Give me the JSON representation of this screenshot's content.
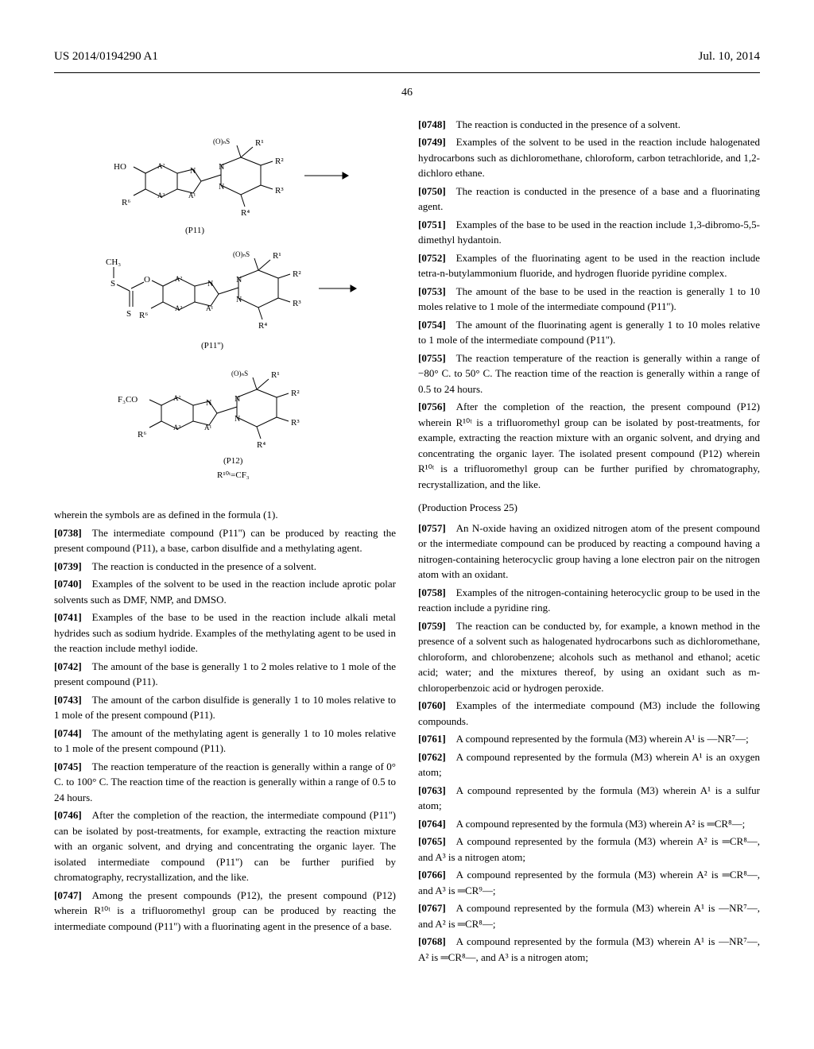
{
  "header": {
    "left": "US 2014/0194290 A1",
    "right": "Jul. 10, 2014"
  },
  "page_number": "46",
  "chemical_diagram": {
    "type": "diagram",
    "description": "Three-step reaction scheme: (P11) hydroxy-substituted fused bicyclic compound → (P11'') xanthate intermediate → (P12) trifluoromethoxy product",
    "labels": [
      "(P11)",
      "(P11'')",
      "(P12)"
    ],
    "substituents": [
      "R¹",
      "R²",
      "R³",
      "R⁴",
      "R⁶",
      "A¹",
      "A²",
      "A³",
      "(O)ₙS",
      "HO",
      "CH₃",
      "S",
      "O",
      "F₃CO"
    ],
    "footer": "R¹⁰ᵗ=CF₃",
    "colors": {
      "stroke": "#000000",
      "background": "#ffffff"
    },
    "line_width": 1
  },
  "left_column": [
    {
      "t": "wherein the symbols are as defined in the formula (1)."
    },
    {
      "pn": "[0738]",
      "t": "The intermediate compound (P11'') can be produced by reacting the present compound (P11), a base, carbon disulfide and a methylating agent."
    },
    {
      "pn": "[0739]",
      "t": "The reaction is conducted in the presence of a solvent."
    },
    {
      "pn": "[0740]",
      "t": "Examples of the solvent to be used in the reaction include aprotic polar solvents such as DMF, NMP, and DMSO."
    },
    {
      "pn": "[0741]",
      "t": "Examples of the base to be used in the reaction include alkali metal hydrides such as sodium hydride. Examples of the methylating agent to be used in the reaction include methyl iodide."
    },
    {
      "pn": "[0742]",
      "t": "The amount of the base is generally 1 to 2 moles relative to 1 mole of the present compound (P11)."
    },
    {
      "pn": "[0743]",
      "t": "The amount of the carbon disulfide is generally 1 to 10 moles relative to 1 mole of the present compound (P11)."
    },
    {
      "pn": "[0744]",
      "t": "The amount of the methylating agent is generally 1 to 10 moles relative to 1 mole of the present compound (P11)."
    },
    {
      "pn": "[0745]",
      "t": "The reaction temperature of the reaction is generally within a range of 0° C. to 100° C. The reaction time of the reaction is generally within a range of 0.5 to 24 hours."
    },
    {
      "pn": "[0746]",
      "t": "After the completion of the reaction, the intermediate compound (P11'') can be isolated by post-treatments, for example, extracting the reaction mixture with an organic solvent, and drying and concentrating the organic layer. The isolated intermediate compound (P11'') can be further purified by chromatography, recrystallization, and the like."
    },
    {
      "pn": "[0747]",
      "t": "Among the present compounds (P12), the present compound (P12) wherein R¹⁰ᵗ is a trifluoromethyl group can be produced by reacting the intermediate compound (P11'') with a fluorinating agent in the presence of a base."
    }
  ],
  "right_column": [
    {
      "pn": "[0748]",
      "t": "The reaction is conducted in the presence of a solvent."
    },
    {
      "pn": "[0749]",
      "t": "Examples of the solvent to be used in the reaction include halogenated hydrocarbons such as dichloromethane, chloroform, carbon tetrachloride, and 1,2-dichloro ethane."
    },
    {
      "pn": "[0750]",
      "t": "The reaction is conducted in the presence of a base and a fluorinating agent."
    },
    {
      "pn": "[0751]",
      "t": "Examples of the base to be used in the reaction include 1,3-dibromo-5,5-dimethyl hydantoin."
    },
    {
      "pn": "[0752]",
      "t": "Examples of the fluorinating agent to be used in the reaction include tetra-n-butylammonium fluoride, and hydrogen fluoride pyridine complex."
    },
    {
      "pn": "[0753]",
      "t": "The amount of the base to be used in the reaction is generally 1 to 10 moles relative to 1 mole of the intermediate compound (P11'')."
    },
    {
      "pn": "[0754]",
      "t": "The amount of the fluorinating agent is generally 1 to 10 moles relative to 1 mole of the intermediate compound (P11'')."
    },
    {
      "pn": "[0755]",
      "t": "The reaction temperature of the reaction is generally within a range of −80° C. to 50° C. The reaction time of the reaction is generally within a range of 0.5 to 24 hours."
    },
    {
      "pn": "[0756]",
      "t": "After the completion of the reaction, the present compound (P12) wherein R¹⁰ᵗ is a trifluoromethyl group can be isolated by post-treatments, for example, extracting the reaction mixture with an organic solvent, and drying and concentrating the organic layer. The isolated present compound (P12) wherein R¹⁰ᵗ is a trifluoromethyl group can be further purified by chromatography, recrystallization, and the like."
    },
    {
      "section": "(Production Process 25)"
    },
    {
      "pn": "[0757]",
      "t": "An N-oxide having an oxidized nitrogen atom of the present compound or the intermediate compound can be produced by reacting a compound having a nitrogen-containing heterocyclic group having a lone electron pair on the nitrogen atom with an oxidant."
    },
    {
      "pn": "[0758]",
      "t": "Examples of the nitrogen-containing heterocyclic group to be used in the reaction include a pyridine ring."
    },
    {
      "pn": "[0759]",
      "t": "The reaction can be conducted by, for example, a known method in the presence of a solvent such as halogenated hydrocarbons such as dichloromethane, chloroform, and chlorobenzene; alcohols such as methanol and ethanol; acetic acid; water; and the mixtures thereof, by using an oxidant such as m-chloroperbenzoic acid or hydrogen peroxide."
    },
    {
      "pn": "[0760]",
      "t": "Examples of the intermediate compound (M3) include the following compounds."
    },
    {
      "pn": "[0761]",
      "t": "A compound represented by the formula (M3) wherein A¹ is —NR⁷—;"
    },
    {
      "pn": "[0762]",
      "t": "A compound represented by the formula (M3) wherein A¹ is an oxygen atom;"
    },
    {
      "pn": "[0763]",
      "t": "A compound represented by the formula (M3) wherein A¹ is a sulfur atom;"
    },
    {
      "pn": "[0764]",
      "t": "A compound represented by the formula (M3) wherein A² is ═CR⁸—;"
    },
    {
      "pn": "[0765]",
      "t": "A compound represented by the formula (M3) wherein A² is ═CR⁸—, and A³ is a nitrogen atom;"
    },
    {
      "pn": "[0766]",
      "t": "A compound represented by the formula (M3) wherein A² is ═CR⁸—, and A³ is ═CR⁹—;"
    },
    {
      "pn": "[0767]",
      "t": "A compound represented by the formula (M3) wherein A¹ is —NR⁷—, and A² is ═CR⁸—;"
    },
    {
      "pn": "[0768]",
      "t": "A compound represented by the formula (M3) wherein A¹ is —NR⁷—, A² is ═CR⁸—, and A³ is a nitrogen atom;"
    }
  ]
}
